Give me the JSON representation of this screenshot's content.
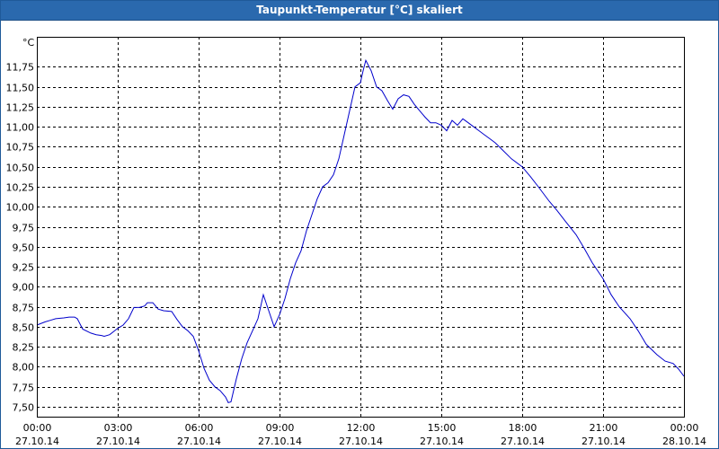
{
  "window": {
    "title": "Taupunkt-Temperatur [°C] skaliert"
  },
  "colors": {
    "titlebar": "#2a69ae",
    "line": "#0000cc",
    "grid": "#000000"
  },
  "chart_data": {
    "type": "line",
    "title": "Taupunkt-Temperatur [°C] skaliert",
    "yunit": "°C",
    "xlabel": "",
    "ylabel": "",
    "grid": true,
    "ylim": [
      7.375,
      12.125
    ],
    "xlim_hours": [
      0,
      24
    ],
    "y_ticks": [
      "7,50",
      "7,75",
      "8,00",
      "8,25",
      "8,50",
      "8,75",
      "9,00",
      "9,25",
      "9,50",
      "9,75",
      "10,00",
      "10,25",
      "10,50",
      "10,75",
      "11,00",
      "11,25",
      "11,50",
      "11,75"
    ],
    "x_ticks": [
      {
        "time": "00:00",
        "date": "27.10.14"
      },
      {
        "time": "03:00",
        "date": "27.10.14"
      },
      {
        "time": "06:00",
        "date": "27.10.14"
      },
      {
        "time": "09:00",
        "date": "27.10.14"
      },
      {
        "time": "12:00",
        "date": "27.10.14"
      },
      {
        "time": "15:00",
        "date": "27.10.14"
      },
      {
        "time": "18:00",
        "date": "27.10.14"
      },
      {
        "time": "21:00",
        "date": "27.10.14"
      },
      {
        "time": "00:00",
        "date": "28.10.14"
      }
    ],
    "series": [
      {
        "x_hours": [
          0.0,
          0.3,
          0.5,
          0.7,
          1.0,
          1.2,
          1.4,
          1.5,
          1.7,
          2.0,
          2.2,
          2.4,
          2.5,
          2.7,
          3.0,
          3.2,
          3.4,
          3.6,
          3.8,
          4.0,
          4.1,
          4.3,
          4.5,
          4.7,
          5.0,
          5.2,
          5.4,
          5.6,
          5.8,
          6.0,
          6.2,
          6.4,
          6.6,
          6.8,
          7.0,
          7.1,
          7.2,
          7.4,
          7.6,
          7.8,
          8.0,
          8.2,
          8.4,
          8.6,
          8.8,
          9.0,
          9.2,
          9.4,
          9.6,
          9.8,
          10.0,
          10.2,
          10.4,
          10.6,
          10.8,
          11.0,
          11.2,
          11.4,
          11.6,
          11.8,
          12.0,
          12.1,
          12.2,
          12.4,
          12.6,
          12.8,
          13.0,
          13.2,
          13.4,
          13.6,
          13.8,
          14.0,
          14.2,
          14.4,
          14.6,
          14.8,
          15.0,
          15.2,
          15.4,
          15.6,
          15.8,
          16.0,
          16.2,
          16.4,
          16.6,
          16.8,
          17.0,
          17.3,
          17.6,
          18.0,
          18.3,
          18.6,
          19.0,
          19.3,
          19.6,
          20.0,
          20.3,
          20.6,
          21.0,
          21.3,
          21.6,
          22.0,
          22.3,
          22.6,
          23.0,
          23.3,
          23.6,
          23.8,
          24.0
        ],
        "values": [
          8.52,
          8.56,
          8.58,
          8.6,
          8.61,
          8.62,
          8.62,
          8.6,
          8.47,
          8.42,
          8.4,
          8.39,
          8.38,
          8.4,
          8.48,
          8.52,
          8.6,
          8.74,
          8.74,
          8.76,
          8.8,
          8.8,
          8.72,
          8.7,
          8.69,
          8.59,
          8.5,
          8.45,
          8.38,
          8.2,
          7.98,
          7.83,
          7.75,
          7.7,
          7.62,
          7.55,
          7.56,
          7.85,
          8.1,
          8.3,
          8.45,
          8.6,
          8.9,
          8.7,
          8.5,
          8.65,
          8.85,
          9.1,
          9.3,
          9.45,
          9.7,
          9.9,
          10.1,
          10.25,
          10.3,
          10.4,
          10.6,
          10.9,
          11.2,
          11.5,
          11.55,
          11.7,
          11.83,
          11.7,
          11.5,
          11.45,
          11.33,
          11.22,
          11.35,
          11.4,
          11.38,
          11.28,
          11.2,
          11.12,
          11.05,
          11.05,
          11.02,
          10.95,
          11.08,
          11.02,
          11.1,
          11.05,
          11.0,
          10.95,
          10.9,
          10.85,
          10.8,
          10.7,
          10.6,
          10.5,
          10.38,
          10.25,
          10.07,
          9.95,
          9.82,
          9.65,
          9.48,
          9.3,
          9.1,
          8.9,
          8.75,
          8.6,
          8.45,
          8.28,
          8.15,
          8.07,
          8.04,
          7.97,
          7.88
        ]
      }
    ]
  }
}
